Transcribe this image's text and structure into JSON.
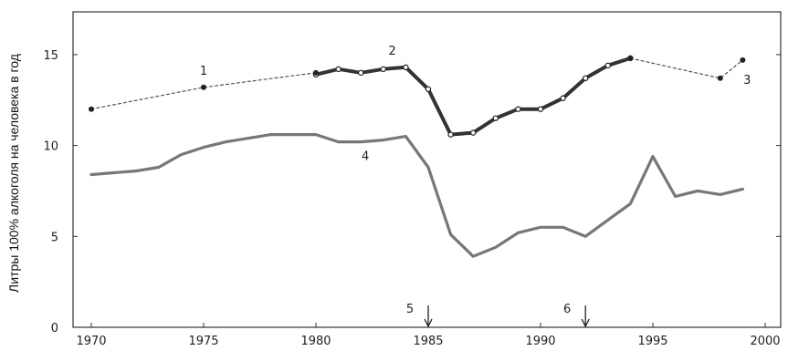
{
  "chart_data": {
    "type": "line",
    "ylabel": "Литры 100% алкоголя на человека в год",
    "xlim": [
      1970,
      2000
    ],
    "ylim": [
      0,
      17
    ],
    "x_ticks": [
      1970,
      1975,
      1980,
      1985,
      1990,
      1995,
      2000
    ],
    "y_ticks": [
      0,
      5,
      10,
      15
    ],
    "grid": false,
    "legend": "none",
    "series": [
      {
        "name": "1",
        "style": "dashed",
        "points": [
          [
            1970,
            12.0
          ],
          [
            1975,
            13.2
          ],
          [
            1980,
            14.0
          ]
        ]
      },
      {
        "name": "2",
        "style": "thick",
        "points": [
          [
            1980,
            13.9
          ],
          [
            1981,
            14.2
          ],
          [
            1982,
            14.0
          ],
          [
            1983,
            14.2
          ],
          [
            1984,
            14.3
          ],
          [
            1985,
            13.1
          ],
          [
            1986,
            10.6
          ],
          [
            1987,
            10.7
          ],
          [
            1988,
            11.5
          ],
          [
            1989,
            12.0
          ],
          [
            1990,
            12.0
          ],
          [
            1991,
            12.6
          ],
          [
            1992,
            13.7
          ],
          [
            1993,
            14.4
          ],
          [
            1994,
            14.8
          ]
        ]
      },
      {
        "name": "3",
        "style": "dashed",
        "points": [
          [
            1994,
            14.8
          ],
          [
            1998,
            13.7
          ],
          [
            1999,
            14.7
          ]
        ]
      },
      {
        "name": "4",
        "style": "gray",
        "points": [
          [
            1970,
            8.4
          ],
          [
            1971,
            8.5
          ],
          [
            1972,
            8.6
          ],
          [
            1973,
            8.8
          ],
          [
            1974,
            9.5
          ],
          [
            1975,
            9.9
          ],
          [
            1976,
            10.2
          ],
          [
            1977,
            10.4
          ],
          [
            1978,
            10.6
          ],
          [
            1979,
            10.6
          ],
          [
            1980,
            10.6
          ],
          [
            1981,
            10.2
          ],
          [
            1982,
            10.2
          ],
          [
            1983,
            10.3
          ],
          [
            1984,
            10.5
          ],
          [
            1985,
            8.8
          ],
          [
            1986,
            5.1
          ],
          [
            1987,
            3.9
          ],
          [
            1988,
            4.4
          ],
          [
            1989,
            5.2
          ],
          [
            1990,
            5.5
          ],
          [
            1991,
            5.5
          ],
          [
            1992,
            5.0
          ],
          [
            1993,
            5.9
          ],
          [
            1994,
            6.8
          ],
          [
            1995,
            9.4
          ],
          [
            1996,
            7.2
          ],
          [
            1997,
            7.5
          ],
          [
            1998,
            7.3
          ],
          [
            1999,
            7.6
          ]
        ]
      }
    ],
    "labels": [
      {
        "text": "1",
        "x": 1975,
        "y": 13.9
      },
      {
        "text": "2",
        "x": 1983.4,
        "y": 15.0
      },
      {
        "text": "3",
        "x": 1999.2,
        "y": 13.4
      },
      {
        "text": "4",
        "x": 1982.2,
        "y": 9.2
      }
    ],
    "markers": [
      {
        "text": "5",
        "year": 1985
      },
      {
        "text": "6",
        "year": 1992
      }
    ]
  }
}
